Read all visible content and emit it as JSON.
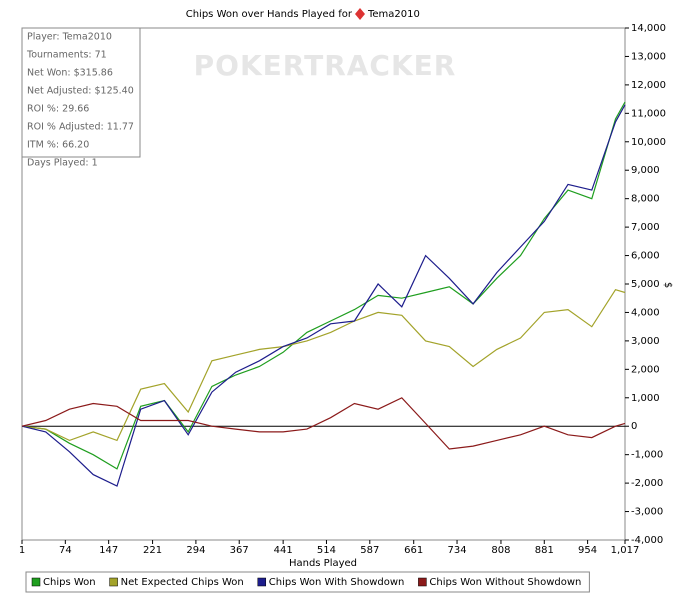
{
  "chart_data": {
    "type": "line",
    "title": "Chips Won over Hands Played for",
    "title_name": "Tema2010",
    "watermark": "POKERTRACKER",
    "x_label": "Hands Played",
    "y_label": "$",
    "info": [
      "Player: Tema2010",
      "Tournaments: 71",
      "Net Won: $315.86",
      "Net Adjusted: $125.40",
      "ROI %: 29.66",
      "ROI % Adjusted: 11.77",
      "ITM %: 66.20",
      "Days Played: 1"
    ],
    "x": [
      1,
      41,
      81,
      121,
      161,
      201,
      241,
      281,
      321,
      361,
      401,
      441,
      481,
      521,
      561,
      601,
      641,
      681,
      721,
      761,
      801,
      841,
      881,
      921,
      961,
      1001,
      1017
    ],
    "series": [
      {
        "name": "Chips Won",
        "color": "#1f9e1f",
        "values": [
          0,
          -100,
          -600,
          -1000,
          -1500,
          700,
          900,
          -200,
          1400,
          1800,
          2100,
          2600,
          3300,
          3700,
          4100,
          4600,
          4500,
          4700,
          4900,
          4300,
          5200,
          6000,
          7300,
          8300,
          8000,
          10800,
          11400
        ]
      },
      {
        "name": "Net Expected Chips Won",
        "color": "#a3a32a",
        "values": [
          0,
          -100,
          -500,
          -200,
          -500,
          1300,
          1500,
          500,
          2300,
          2500,
          2700,
          2800,
          3000,
          3300,
          3700,
          4000,
          3900,
          3000,
          2800,
          2100,
          2700,
          3100,
          4000,
          4100,
          3500,
          4800,
          4700
        ]
      },
      {
        "name": "Chips Won With Showdown",
        "color": "#1d1d8c",
        "values": [
          0,
          -200,
          -900,
          -1700,
          -2100,
          600,
          900,
          -300,
          1200,
          1900,
          2300,
          2800,
          3100,
          3600,
          3700,
          5000,
          4200,
          6000,
          5200,
          4300,
          5400,
          6300,
          7200,
          8500,
          8300,
          10700,
          11300
        ]
      },
      {
        "name": "Chips Won Without Showdown",
        "color": "#8b1a1a",
        "values": [
          0,
          200,
          600,
          800,
          700,
          200,
          200,
          200,
          0,
          -100,
          -200,
          -200,
          -100,
          300,
          800,
          600,
          1000,
          100,
          -800,
          -700,
          -500,
          -300,
          0,
          -300,
          -400,
          0,
          100
        ]
      }
    ],
    "xlim": [
      1,
      1017
    ],
    "ylim": [
      -4000,
      14000
    ],
    "xticks": [
      1,
      74,
      147,
      221,
      294,
      367,
      441,
      514,
      587,
      661,
      734,
      808,
      881,
      954,
      {
        "value": 1017,
        "label": "1,017"
      }
    ],
    "yticks": [
      {
        "value": -4000,
        "label": "-4,000"
      },
      {
        "value": -3000,
        "label": "-3,000"
      },
      {
        "value": -2000,
        "label": "-2,000"
      },
      {
        "value": -1000,
        "label": "-1,000"
      },
      0,
      {
        "value": 1000,
        "label": "1,000"
      },
      {
        "value": 2000,
        "label": "2,000"
      },
      {
        "value": 3000,
        "label": "3,000"
      },
      {
        "value": 4000,
        "label": "4,000"
      },
      {
        "value": 5000,
        "label": "5,000"
      },
      {
        "value": 6000,
        "label": "6,000"
      },
      {
        "value": 7000,
        "label": "7,000"
      },
      {
        "value": 8000,
        "label": "8,000"
      },
      {
        "value": 9000,
        "label": "9,000"
      },
      {
        "value": 10000,
        "label": "10,000"
      },
      {
        "value": 11000,
        "label": "11,000"
      },
      {
        "value": 12000,
        "label": "12,000"
      },
      {
        "value": 13000,
        "label": "13,000"
      },
      {
        "value": 14000,
        "label": "14,000"
      }
    ],
    "legend": "bottom"
  }
}
